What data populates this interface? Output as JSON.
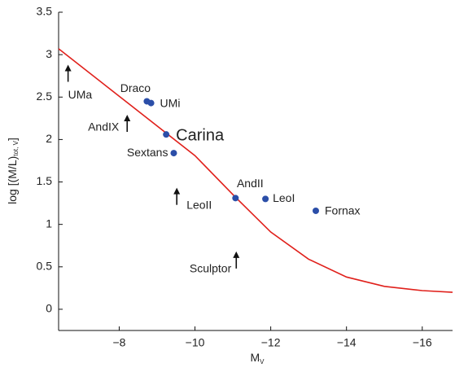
{
  "chart_data": {
    "type": "scatter",
    "xlabel": "M",
    "xlabel_sub": "V",
    "ylabel": "log [(M/L)",
    "ylabel_sub": "tot, V",
    "ylabel_end": "]",
    "xlim": [
      -6.4,
      -16.8
    ],
    "ylim": [
      -0.25,
      3.5
    ],
    "xticks": [
      {
        "value": -8,
        "label": "−8"
      },
      {
        "value": -10,
        "label": "−10"
      },
      {
        "value": -12,
        "label": "−12"
      },
      {
        "value": -14,
        "label": "−14"
      },
      {
        "value": -16,
        "label": "−16"
      }
    ],
    "yticks": [
      0,
      0.5,
      1,
      1.5,
      2,
      2.5,
      3,
      3.5
    ],
    "points": {
      "color": "#2b4ea8",
      "labels": [
        "Draco",
        "UMi",
        "Carina",
        "Sextans",
        "AndII",
        "LeoI",
        "Fornax"
      ],
      "x": [
        -8.73,
        -8.84,
        -9.24,
        -9.44,
        -11.07,
        -11.86,
        -13.19
      ],
      "y": [
        2.45,
        2.43,
        2.06,
        1.84,
        1.31,
        1.3,
        1.16
      ]
    },
    "limits": {
      "color": "#111111",
      "labels": [
        "UMa",
        "AndIX",
        "LeoII",
        "Sculptor"
      ],
      "x": [
        -6.65,
        -8.21,
        -9.52,
        -11.09
      ],
      "y": [
        2.68,
        2.09,
        1.23,
        0.48
      ]
    },
    "curve": {
      "color": "#e0201b",
      "x": [
        -6.4,
        -8,
        -10,
        -11.07,
        -12,
        -13,
        -14,
        -15,
        -16,
        -16.8
      ],
      "y": [
        3.07,
        2.51,
        1.81,
        1.32,
        0.91,
        0.59,
        0.38,
        0.27,
        0.22,
        0.2
      ]
    }
  }
}
